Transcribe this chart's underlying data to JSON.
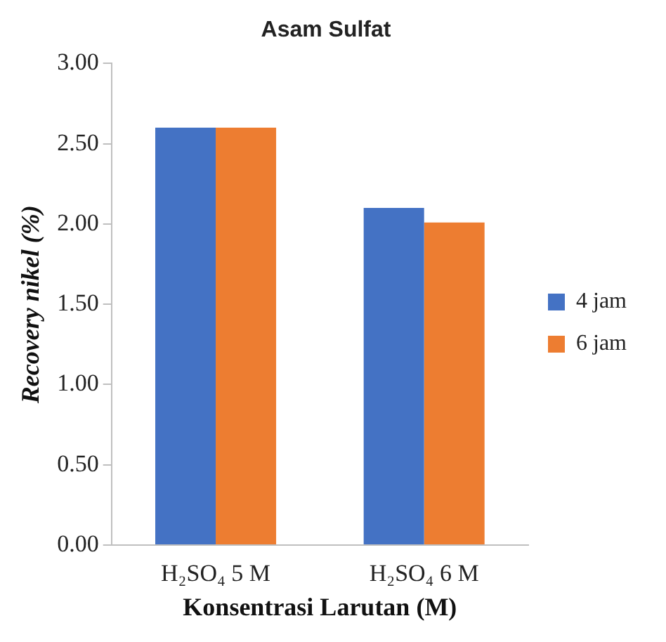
{
  "chart_data": {
    "type": "bar",
    "title": "Asam Sulfat",
    "xlabel": "Konsentrasi Larutan (M)",
    "ylabel": "Recovery nikel (%)",
    "categories": [
      "H₂SO₄ 5 M",
      "H₂SO₄ 6 M"
    ],
    "series": [
      {
        "name": "4 jam",
        "color": "#4472c4",
        "values": [
          2.6,
          2.1
        ]
      },
      {
        "name": "6 jam",
        "color": "#ed7d31",
        "values": [
          2.6,
          2.01
        ]
      }
    ],
    "ylim": [
      0,
      3
    ],
    "yticks": [
      {
        "value": 0,
        "label": "0.00"
      },
      {
        "value": 0.5,
        "label": "0.50"
      },
      {
        "value": 1,
        "label": "1.00"
      },
      {
        "value": 1.5,
        "label": "1.50"
      },
      {
        "value": 2,
        "label": "2.00"
      },
      {
        "value": 2.5,
        "label": "2.50"
      },
      {
        "value": 3,
        "label": "3.00"
      }
    ],
    "grid": false,
    "legend": "right"
  }
}
